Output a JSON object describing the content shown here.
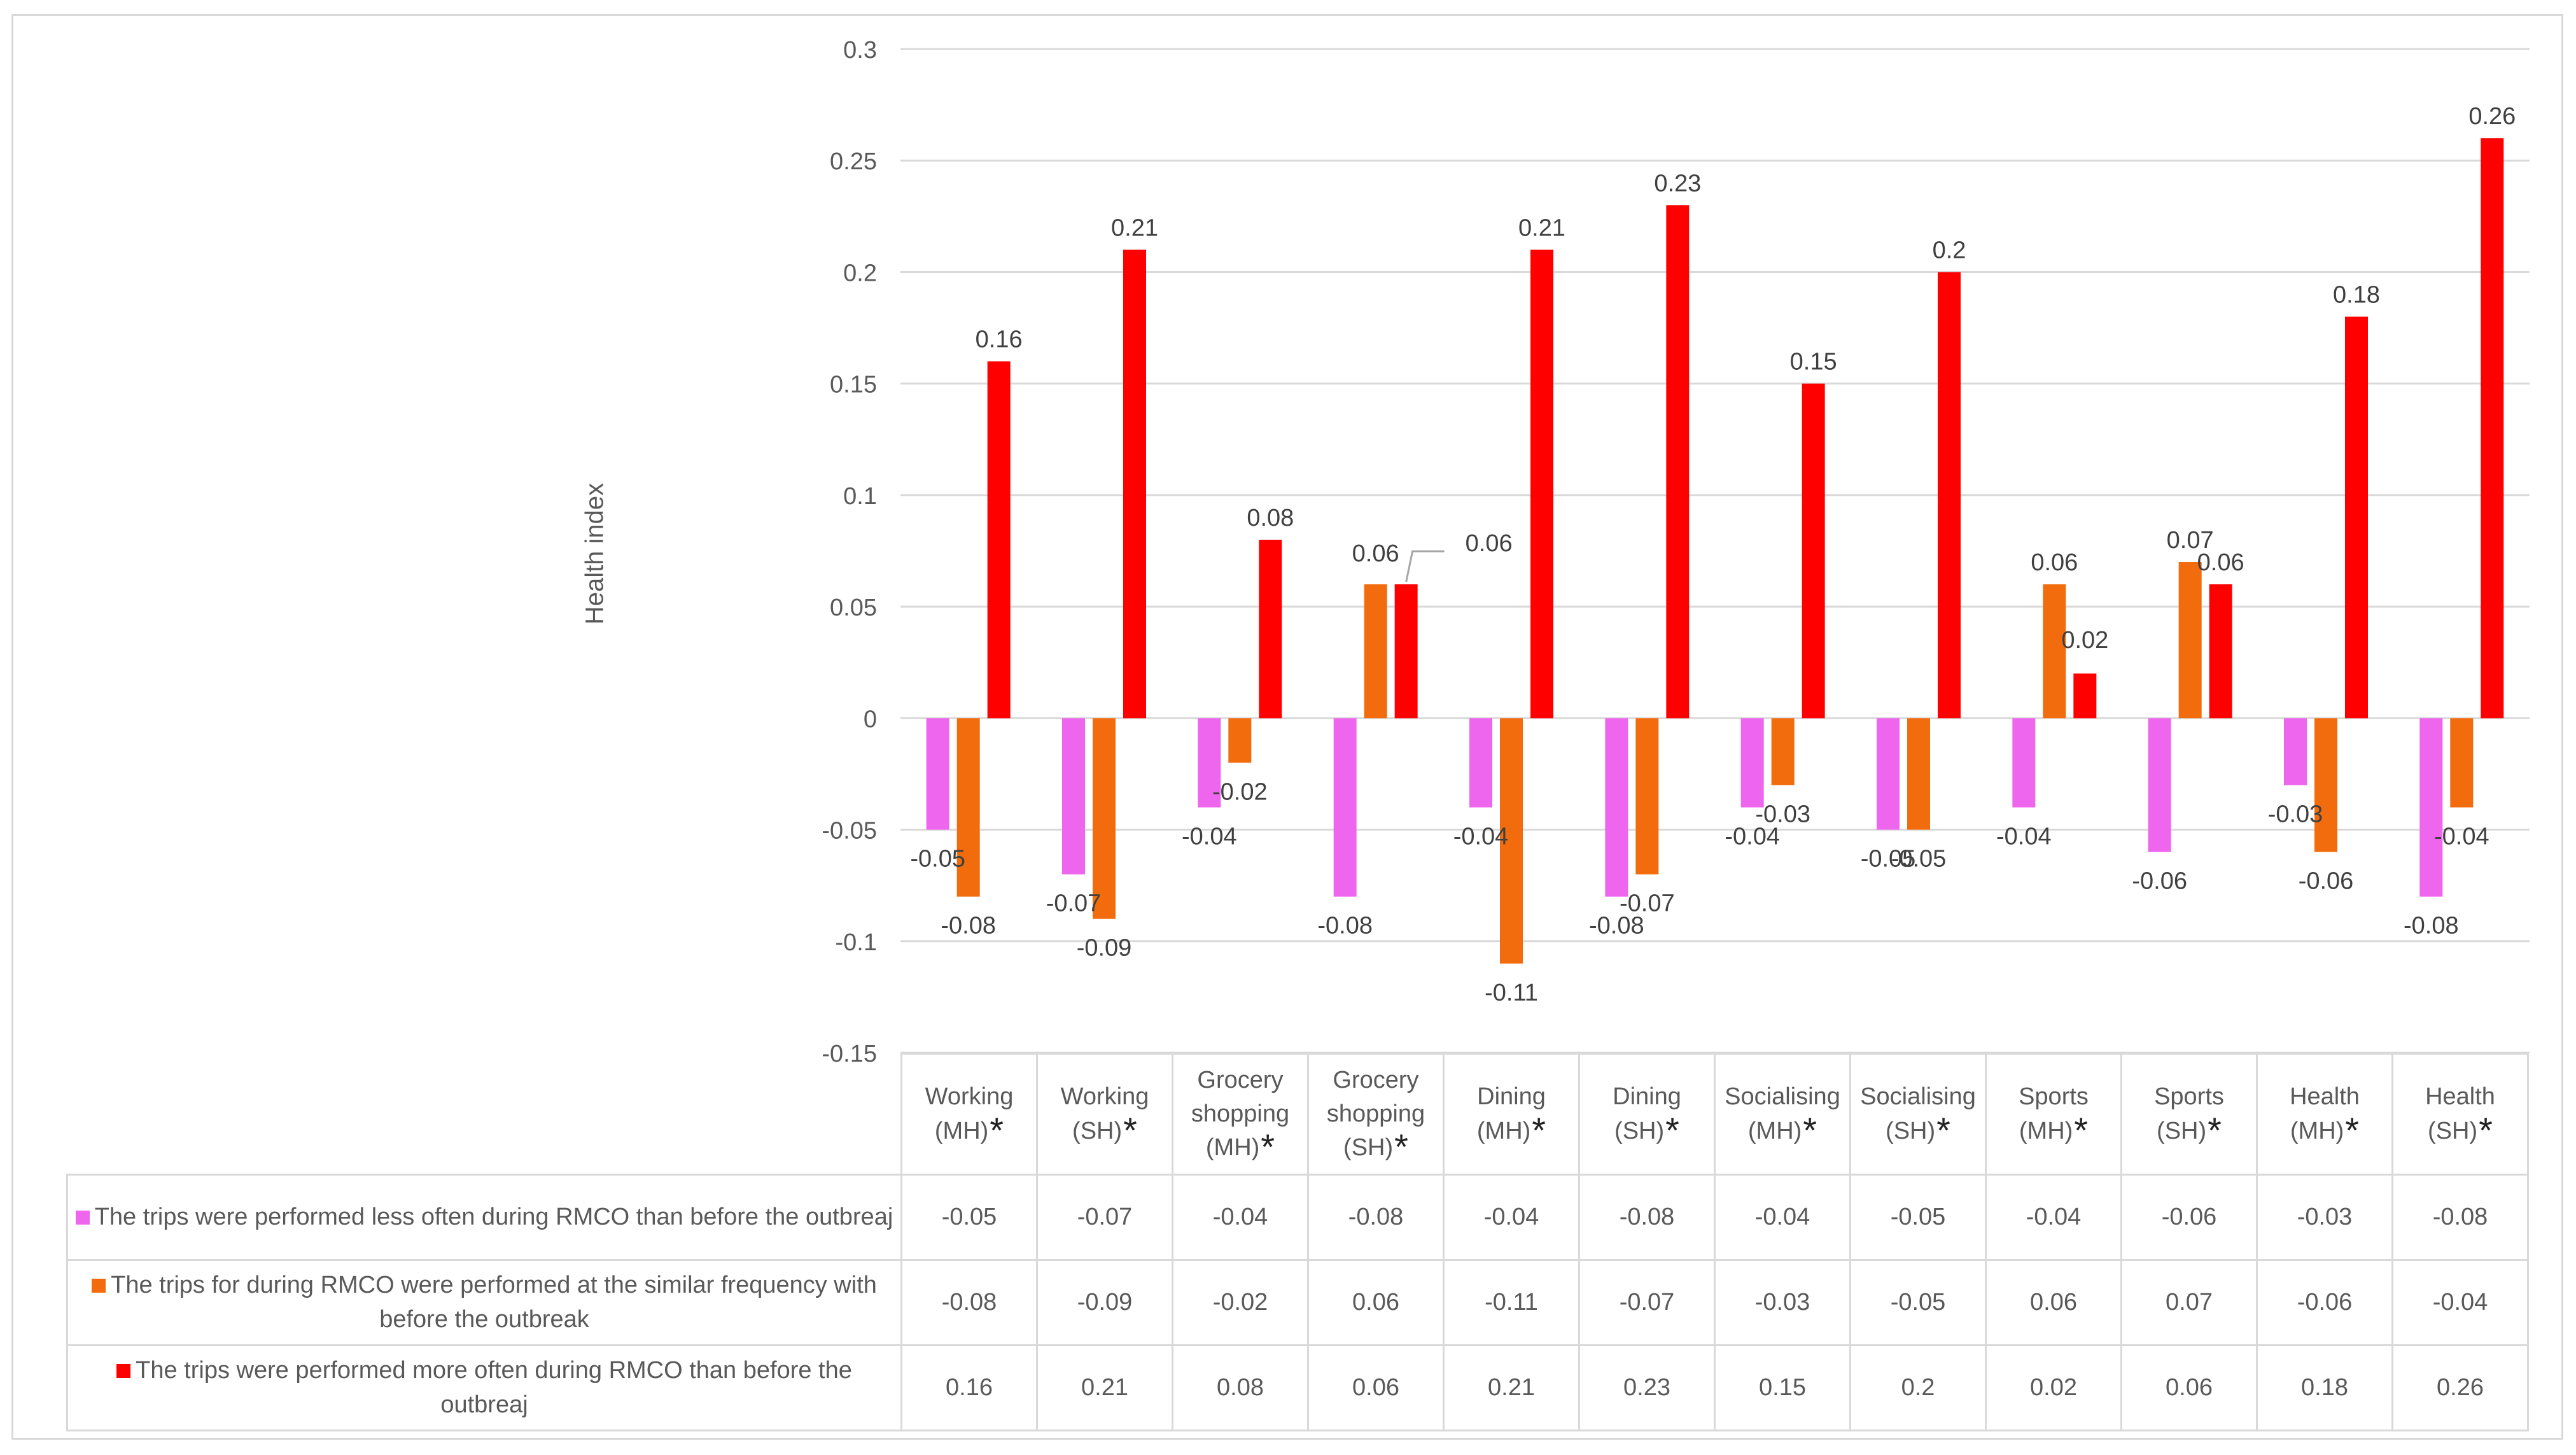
{
  "chart_data": {
    "type": "bar",
    "title": "",
    "xlabel": "",
    "ylabel": "Health index",
    "ylim": [
      -0.15,
      0.3
    ],
    "yticks": [
      -0.15,
      -0.1,
      -0.05,
      0,
      0.05,
      0.1,
      0.15,
      0.2,
      0.25,
      0.3
    ],
    "ytick_labels": [
      "-0.15",
      "-0.1",
      "-0.05",
      "0",
      "0.05",
      "0.1",
      "0.15",
      "0.2",
      "0.25",
      "0.3"
    ],
    "grid": true,
    "legend_position": "data table below the chart",
    "categories": [
      {
        "line1": "Working",
        "line2": "(MH)",
        "star": "*"
      },
      {
        "line1": "Working",
        "line2": "(SH)",
        "star": "*"
      },
      {
        "line1": "Grocery shopping",
        "line2": "(MH)",
        "star": "*"
      },
      {
        "line1": "Grocery shopping",
        "line2": "(SH)",
        "star": "*"
      },
      {
        "line1": "Dining",
        "line2": "(MH)",
        "star": "*"
      },
      {
        "line1": "Dining",
        "line2": "(SH)",
        "star": "*"
      },
      {
        "line1": "Socialising",
        "line2": "(MH)",
        "star": "*"
      },
      {
        "line1": "Socialising",
        "line2": "(SH)",
        "star": "*"
      },
      {
        "line1": "Sports",
        "line2": "(MH)",
        "star": "*"
      },
      {
        "line1": "Sports",
        "line2": "(SH)",
        "star": "*"
      },
      {
        "line1": "Health",
        "line2": "(MH)",
        "star": "*"
      },
      {
        "line1": "Health",
        "line2": "(SH)",
        "star": "*"
      }
    ],
    "series": [
      {
        "name": "The trips were performed less often during RMCO than before the outbreaj",
        "color": "#ee66ee",
        "values": [
          -0.05,
          -0.07,
          -0.04,
          -0.08,
          -0.04,
          -0.08,
          -0.04,
          -0.05,
          -0.04,
          -0.06,
          -0.03,
          -0.08
        ],
        "labels": [
          "-0.05",
          "-0.07",
          "-0.04",
          "-0.08",
          "-0.04",
          "-0.08",
          "-0.04",
          "-0.05",
          "-0.04",
          "-0.06",
          "-0.03",
          "-0.08"
        ]
      },
      {
        "name": "The trips for during RMCO were performed at the similar frequency with before the outbreak",
        "color": "#f26c0d",
        "values": [
          -0.08,
          -0.09,
          -0.02,
          0.06,
          -0.11,
          -0.07,
          -0.03,
          -0.05,
          0.06,
          0.07,
          -0.06,
          -0.04
        ],
        "labels": [
          "-0.08",
          "-0.09",
          "-0.02",
          "0.06",
          "-0.11",
          "-0.07",
          "-0.03",
          "-0.05",
          "0.06",
          "0.07",
          "-0.06",
          "-0.04"
        ]
      },
      {
        "name": "The trips were performed more often during RMCO than before the outbreaj",
        "color": "#ff0000",
        "values": [
          0.16,
          0.21,
          0.08,
          0.06,
          0.21,
          0.23,
          0.15,
          0.2,
          0.02,
          0.06,
          0.18,
          0.26
        ],
        "labels": [
          "0.16",
          "0.21",
          "0.08",
          "0.06",
          "0.21",
          "0.23",
          "0.15",
          "0.2",
          "0.02",
          "0.06",
          "0.18",
          "0.26"
        ]
      }
    ]
  }
}
